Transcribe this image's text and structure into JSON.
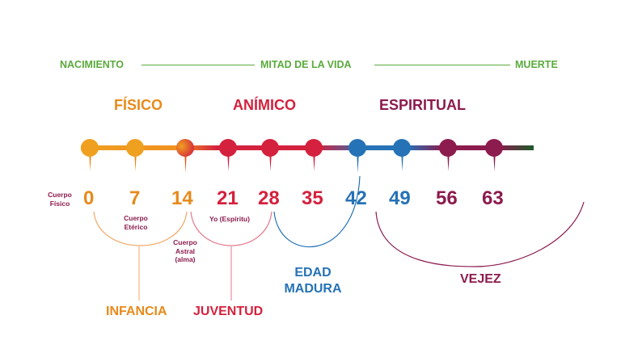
{
  "colors": {
    "green": "#5aaa3c",
    "orange": "#e88a1a",
    "red": "#d4213d",
    "blue": "#2572b6",
    "purple": "#8c1b4e"
  },
  "timeline": {
    "start_label": "NACIMIENTO",
    "middle_label": "MITAD DE LA VIDA",
    "end_label": "MUERTE"
  },
  "phases": [
    "FÍSICO",
    "ANÍMICO",
    "ESPIRITUAL"
  ],
  "ages": [
    "0",
    "7",
    "14",
    "21",
    "28",
    "35",
    "42",
    "49",
    "56",
    "63"
  ],
  "bodies": {
    "physical": "Cuerpo Físico",
    "etheric": "Cuerpo Etérico",
    "astral": "Cuerpo Astral (alma)",
    "spirit": "Yo (Espíritu)"
  },
  "periods": {
    "childhood": "INFANCIA",
    "youth": "JUVENTUD",
    "maturity": "EDAD MADURA",
    "old_age": "VEJEZ"
  }
}
